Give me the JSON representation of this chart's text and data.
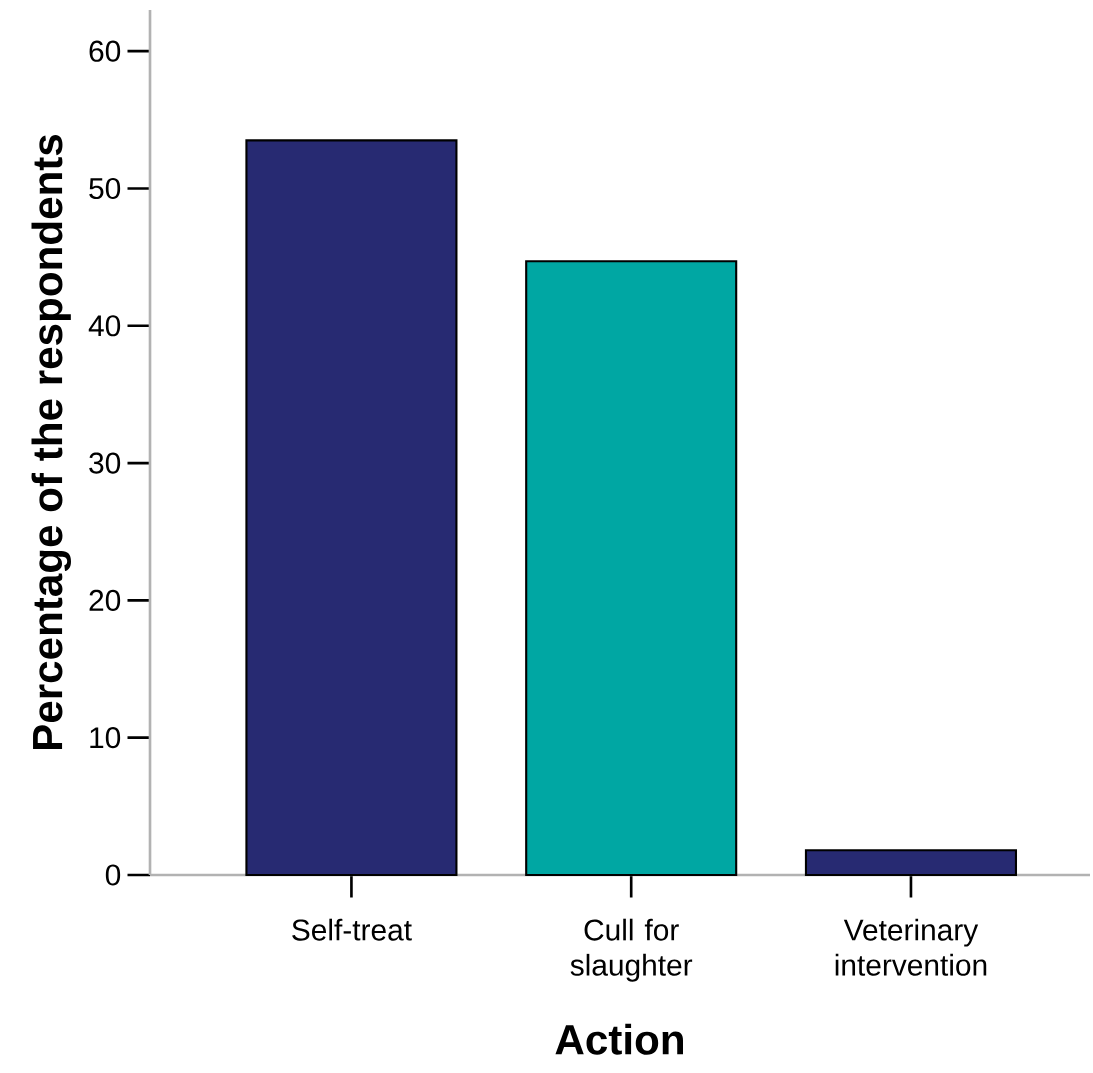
{
  "chart_data": {
    "type": "bar",
    "xlabel": "Action",
    "ylabel": "Percentage of the respondents",
    "categories": [
      "Self-treat",
      "Cull for slaughter",
      "Veterinary intervention"
    ],
    "values": [
      53.5,
      44.7,
      1.8
    ],
    "colors": [
      "#272a72",
      "#00a7a3",
      "#272a72"
    ],
    "ylim": [
      0,
      63
    ],
    "yticks": [
      0,
      10,
      20,
      30,
      40,
      50,
      60
    ],
    "grid": false
  }
}
